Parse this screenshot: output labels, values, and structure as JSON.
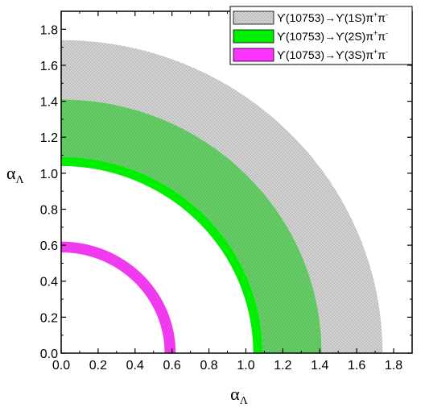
{
  "chart_data": {
    "type": "area",
    "xlabel": "α",
    "xlabel_sub": "Λ",
    "ylabel": "α",
    "ylabel_sub": "Λ",
    "xlim": [
      0.0,
      1.9
    ],
    "ylim": [
      0.0,
      1.9
    ],
    "xticks": [
      "0.0",
      "0.2",
      "0.4",
      "0.6",
      "0.8",
      "1.0",
      "1.2",
      "1.4",
      "1.6",
      "1.8"
    ],
    "yticks": [
      "0.0",
      "0.2",
      "0.4",
      "0.6",
      "0.8",
      "1.0",
      "1.2",
      "1.4",
      "1.6",
      "1.8"
    ],
    "legend_position": "top-right",
    "series": [
      {
        "name": "ϒ(10753)→ϒ(1S)π⁺π⁻",
        "legend_main": "ϒ(10753)→ϒ(1S)π",
        "inner_radius": 1.41,
        "outer_radius": 1.74,
        "color": "#d0d0d0",
        "pattern": "dots"
      },
      {
        "name": "ϒ(10753)→ϒ(2S)π⁺π⁻",
        "legend_main": "ϒ(10753)→ϒ(2S)π",
        "inner_radius": 1.04,
        "outer_radius": 1.41,
        "color": "#00ee00",
        "inner_color": "#00ee00",
        "overlap_color": "#77cc77",
        "solid_band_outer": 1.09
      },
      {
        "name": "ϒ(10753)→ϒ(3S)π⁺π⁻",
        "legend_main": "ϒ(10753)→ϒ(3S)π",
        "inner_radius": 0.56,
        "outer_radius": 0.62,
        "color": "#ff33ff",
        "pattern": "vertical"
      }
    ],
    "legend_sup_plus": "+",
    "legend_pi_minus": "π",
    "legend_sup_minus": "-"
  }
}
